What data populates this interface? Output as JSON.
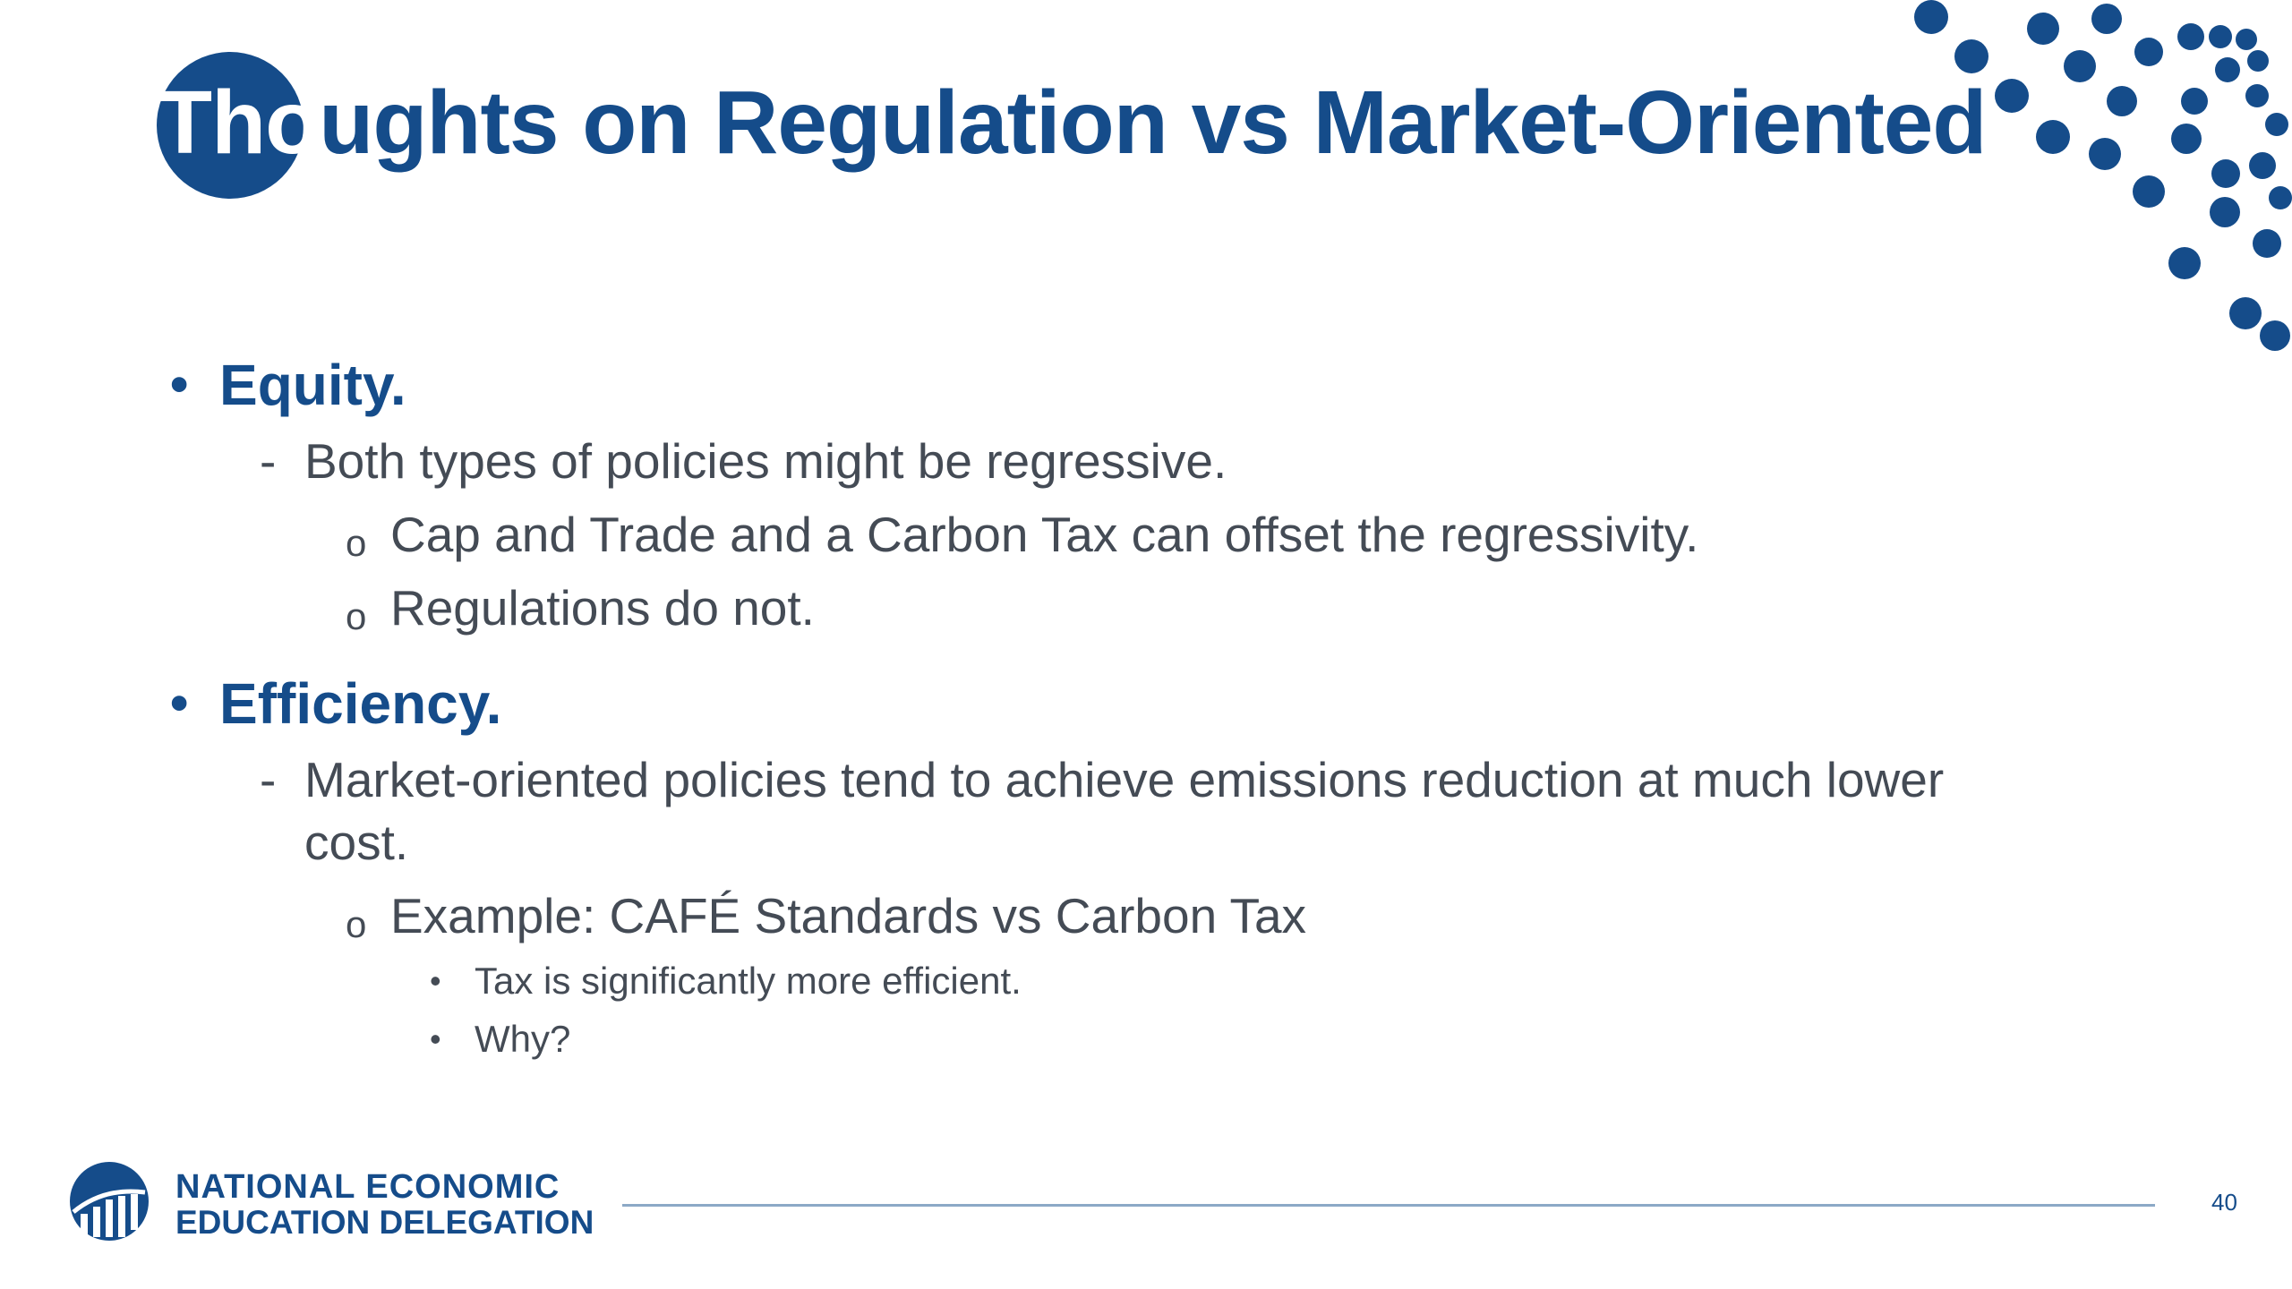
{
  "slide": {
    "title_first": "Tho",
    "title_rest": "ughts on Regulation vs Market-Oriented",
    "page_number": "40"
  },
  "bullets": {
    "equity": {
      "heading": "Equity.",
      "point": "Both types of policies might be regressive.",
      "sub1": "Cap and Trade and a Carbon Tax can offset the regressivity.",
      "sub2": "Regulations do not."
    },
    "efficiency": {
      "heading": "Efficiency.",
      "point_line1": "Market-oriented policies tend to achieve emissions reduction at much lower",
      "point_line2": "cost.",
      "sub1": "Example: CAFÉ Standards vs Carbon Tax",
      "detail1": "Tax is significantly more efficient.",
      "detail2": "Why?"
    }
  },
  "markers": {
    "bullet": "•",
    "dash": "-",
    "circle": "o"
  },
  "footer": {
    "org_line1": "NATIONAL ECONOMIC",
    "org_line2": "EDUCATION DELEGATION"
  },
  "colors": {
    "brand": "#154c8a",
    "body_text": "#444b55",
    "rule": "#8ca9c6"
  },
  "icons": {
    "logo": "nation-logo-icon"
  }
}
